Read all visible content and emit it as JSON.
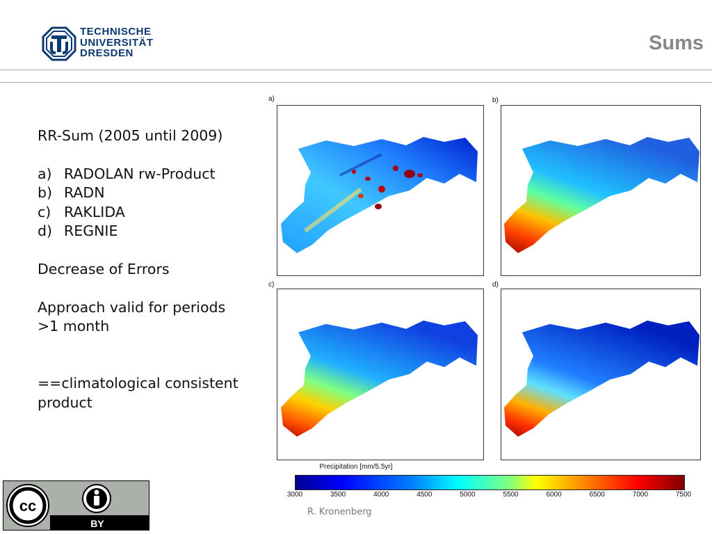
{
  "header": {
    "institution_lines": [
      "TECHNISCHE",
      "UNIVERSITÄT",
      "DRESDEN"
    ],
    "slide_title": "Sums"
  },
  "content": {
    "heading": "RR-Sum (2005 until 2009)",
    "list": [
      {
        "marker": "a)",
        "label": "RADOLAN rw-Product"
      },
      {
        "marker": "b)",
        "label": "RADN"
      },
      {
        "marker": "c)",
        "label": "RAKLIDA"
      },
      {
        "marker": "d)",
        "label": "REGNIE"
      }
    ],
    "note1": "Decrease of Errors",
    "note2_line1": "Approach valid for periods",
    "note2_line2": ">1 month",
    "note3_line1": "==climatological consistent",
    "note3_line2": "product"
  },
  "figure": {
    "panels": [
      "a)",
      "b)",
      "c)",
      "d)"
    ],
    "colorbar_label": "Precipitation [mm/5.5yr]",
    "colorbar_ticks": [
      "3000",
      "3500",
      "4000",
      "4500",
      "5000",
      "5500",
      "6000",
      "6500",
      "7000",
      "7500"
    ]
  },
  "footer": {
    "author": "R. Kronenberg",
    "license_icon": "cc-by-icon",
    "license_text": "BY"
  }
}
